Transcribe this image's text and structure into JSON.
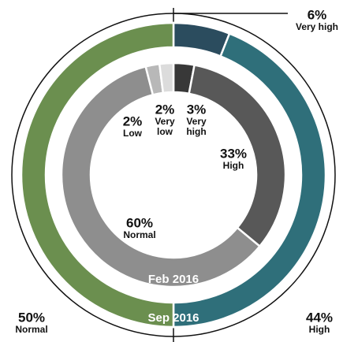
{
  "chart_data": [
    {
      "type": "donut",
      "title": "Sep 2016",
      "categories": [
        "Very high",
        "High",
        "Normal"
      ],
      "values": [
        6,
        44,
        50
      ],
      "value_labels": [
        "6%",
        "44%",
        "50%"
      ],
      "colors": [
        "#2b4c5e",
        "#2f6f7a",
        "#6b8f4f"
      ]
    },
    {
      "type": "donut",
      "title": "Feb 2016",
      "categories": [
        "Very high",
        "High",
        "Normal",
        "Low",
        "Very low"
      ],
      "values": [
        3,
        33,
        60,
        2,
        2
      ],
      "value_labels": [
        "3%",
        "33%",
        "60%",
        "2%",
        "2%"
      ],
      "colors": [
        "#383838",
        "#585858",
        "#8e8e8e",
        "#b8b8b8",
        "#dcdcdc"
      ]
    }
  ]
}
